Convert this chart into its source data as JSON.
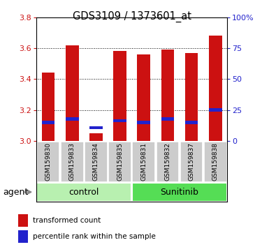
{
  "title": "GDS3109 / 1373601_at",
  "samples": [
    "GSM159830",
    "GSM159833",
    "GSM159834",
    "GSM159835",
    "GSM159831",
    "GSM159832",
    "GSM159837",
    "GSM159838"
  ],
  "red_bar_tops": [
    3.44,
    3.62,
    3.05,
    3.58,
    3.56,
    3.59,
    3.57,
    3.68
  ],
  "blue_marker_y": [
    3.12,
    3.14,
    3.085,
    3.13,
    3.12,
    3.14,
    3.12,
    3.2
  ],
  "bar_bottom": 3.0,
  "ylim_left": [
    3.0,
    3.8
  ],
  "ylim_right": [
    0,
    100
  ],
  "yticks_left": [
    3.0,
    3.2,
    3.4,
    3.6,
    3.8
  ],
  "yticks_right": [
    0,
    25,
    50,
    75,
    100
  ],
  "groups": [
    {
      "label": "control",
      "indices": [
        0,
        1,
        2,
        3
      ],
      "color": "#b8f0b0"
    },
    {
      "label": "Sunitinib",
      "indices": [
        4,
        5,
        6,
        7
      ],
      "color": "#55dd55"
    }
  ],
  "bar_color": "#cc1111",
  "blue_color": "#2222cc",
  "bar_width": 0.55,
  "grid_color": "black",
  "xlabel_color": "#cc1111",
  "right_label_color": "#2222cc",
  "agent_label": "agent",
  "legend_red_label": "transformed count",
  "legend_blue_label": "percentile rank within the sample",
  "sample_box_color": "#cccccc",
  "blue_bar_height": 0.022
}
